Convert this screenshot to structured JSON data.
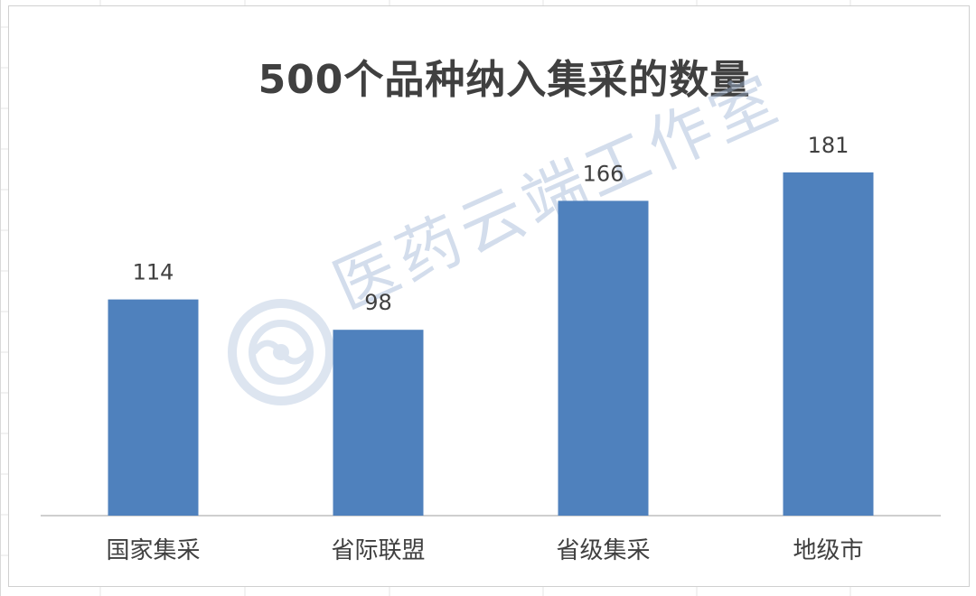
{
  "chart_data": {
    "type": "bar",
    "title": "500个品种纳入集采的数量",
    "categories": [
      "国家集采",
      "省际联盟",
      "省级集采",
      "地级市"
    ],
    "values": [
      114,
      98,
      166,
      181
    ],
    "data_labels": [
      "114",
      "98",
      "166",
      "181"
    ],
    "ylim": [
      0,
      200
    ],
    "grid": false,
    "legend": "none",
    "colors": {
      "bar": "#4f81bd",
      "title": "#404040",
      "label": "#404040",
      "axis": "#bfbfbf"
    }
  },
  "watermark": {
    "text": "医药云端工作室",
    "icon": "cloud-swirl-logo"
  }
}
